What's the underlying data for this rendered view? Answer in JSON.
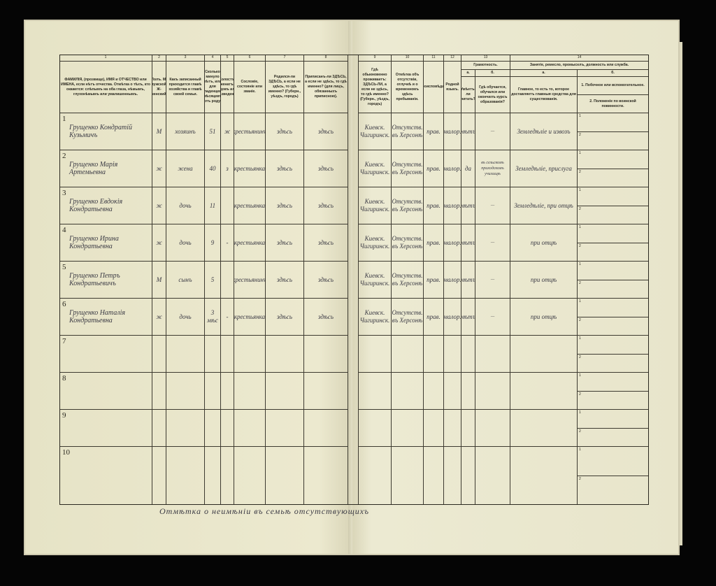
{
  "form": {
    "column_numbers": [
      "1",
      "2",
      "3",
      "4",
      "5",
      "6",
      "7",
      "8",
      "9",
      "10",
      "11",
      "12",
      "13",
      "14"
    ],
    "headers": {
      "c1": "ФАМИЛІЯ, (прозвище), ИМЯ и ОТЧЕСТВО или ИМЕНА, если нѣтъ отчества. Отмѣтка о тѣхъ, кто окажется: слѣпымъ на оба глаза, нѣмымъ, глухонѣмымъ или умалишеннымъ.",
      "c2": "Полъ. М-мужской. Ж-женский.",
      "c3": "Какъ записанный приходится главѣ хозяйства и главѣ своей семьи.",
      "c4": "Сколько минуло лѣтъ, или для младенцевъ мѣсяцевъ отъ роду.",
      "c5": "Холостъ, женатъ, вдовъ или разведенъ.",
      "c6": "Сословіе, состояніе или званіе.",
      "c7": "Родился-ли ЗДѢСЬ, а если не здѣсь, то гдѣ именно? (Губерн., уѣздъ, городъ)",
      "c8": "Приписанъ-ли ЗДѢСЬ, а если не здѣсь, то гдѣ именно? (для лицъ, обязанныхъ приписною).",
      "c9": "Гдѣ обыкновенно проживаетъ: ЗДѢСЬ-ЛИ, а если не здѣсь, то гдѣ именно? (Губерн., уѣздъ, городъ)",
      "c10": "Отмѣтка объ отсутствіи, отлучкѣ и о временномъ здѣсь пребываніи.",
      "c11": "Вѣроисповѣданіе.",
      "c12": "Родной языкъ.",
      "c13": "Грамотность.",
      "c13a_letter": "а.",
      "c13a": "Умѣетъ-ли читать?",
      "c13b_letter": "б.",
      "c13b": "Гдѣ обучается, обучался или окончилъ курсъ образованія?",
      "c14": "Занятіе, ремесло, промыселъ, должность или служба.",
      "c14a_letter": "а.",
      "c14a": "Главное, то есть то, которое доставляетъ главныя средства для существованія.",
      "c14b_letter": "б.",
      "c14b1": "1. Побочное или вспомогательное.",
      "c14b2": "2. Положеніе по воинской повинности."
    },
    "rows": [
      {
        "n": "1",
        "name": "Грущенко Кондратій Кузьмичъ",
        "sex": "М",
        "relation": "хозяинъ",
        "age": "51",
        "marital": "ж",
        "estate": "крестьянинъ",
        "born": "здѣсь",
        "registered": "здѣсь",
        "residence": "Киевск. Чигиринск.",
        "absence": "Отсутств. въ Херсонѣ",
        "religion": "прав.",
        "language": "малор.",
        "literate": "нѣтъ",
        "education": "—",
        "occupation": "Земледѣліе и извозъ",
        "side": "1",
        "military": "2"
      },
      {
        "n": "2",
        "name": "Грущенко Марія Артемьевна",
        "sex": "ж",
        "relation": "жена",
        "age": "40",
        "marital": "з",
        "estate": "крестьянка",
        "born": "здѣсь",
        "registered": "здѣсь",
        "residence": "Киевск. Чигиринск.",
        "absence": "Отсутств. въ Херсонѣ",
        "religion": "прав.",
        "language": "малор.",
        "literate": "да",
        "education": "въ сельскомъ приходскомъ училищѣ",
        "occupation": "Земледѣліе, прислуга",
        "side": "1",
        "military": "2"
      },
      {
        "n": "3",
        "name": "Грущенко Евдокія Кондратьевна",
        "sex": "ж",
        "relation": "дочь",
        "age": "11",
        "marital": "",
        "estate": "крестьянка",
        "born": "здѣсь",
        "registered": "здѣсь",
        "residence": "Киевск. Чигиринск.",
        "absence": "Отсутств. въ Херсонѣ",
        "religion": "прав.",
        "language": "малор.",
        "literate": "нѣтъ",
        "education": "—",
        "occupation": "Земледѣліе, при отцѣ",
        "side": "1",
        "military": "2"
      },
      {
        "n": "4",
        "name": "Грущенко Ирина Кондратьевна",
        "sex": "ж",
        "relation": "дочь",
        "age": "9",
        "marital": "-",
        "estate": "крестьянка",
        "born": "здѣсь",
        "registered": "здѣсь",
        "residence": "Киевск. Чигиринск.",
        "absence": "Отсутств. въ Херсонѣ",
        "religion": "прав.",
        "language": "малор.",
        "literate": "нѣтъ",
        "education": "—",
        "occupation": "при отцѣ",
        "side": "1",
        "military": "2"
      },
      {
        "n": "5",
        "name": "Грущенко Петръ Кондратьевичъ",
        "sex": "М",
        "relation": "сынъ",
        "age": "5",
        "marital": "",
        "estate": "крестьянинъ",
        "born": "здѣсь",
        "registered": "здѣсь",
        "residence": "Киевск. Чигиринск.",
        "absence": "Отсутств. въ Херсонѣ",
        "religion": "прав.",
        "language": "малор.",
        "literate": "нѣтъ",
        "education": "—",
        "occupation": "при отцѣ",
        "side": "1",
        "military": "2"
      },
      {
        "n": "6",
        "name": "Грущенко Наталія Кондратьевна",
        "sex": "ж",
        "relation": "дочь",
        "age": "3 мѣс",
        "marital": "-",
        "estate": "крестьянка",
        "born": "здѣсь",
        "registered": "здѣсь",
        "residence": "Киевск. Чигиринск.",
        "absence": "Отсутств. въ Херсонѣ",
        "religion": "прав.",
        "language": "малор.",
        "literate": "нѣтъ",
        "education": "—",
        "occupation": "при отцѣ",
        "side": "1",
        "military": "2"
      },
      {
        "n": "7",
        "side": "1",
        "military": "2"
      },
      {
        "n": "8",
        "side": "1",
        "military": "2"
      },
      {
        "n": "9",
        "side": "1",
        "military": "2"
      },
      {
        "n": "10",
        "side": "1",
        "military": "2"
      }
    ],
    "footer_note": "Отмѣтка о неимѣніи въ семьѣ отсутствующихъ"
  }
}
